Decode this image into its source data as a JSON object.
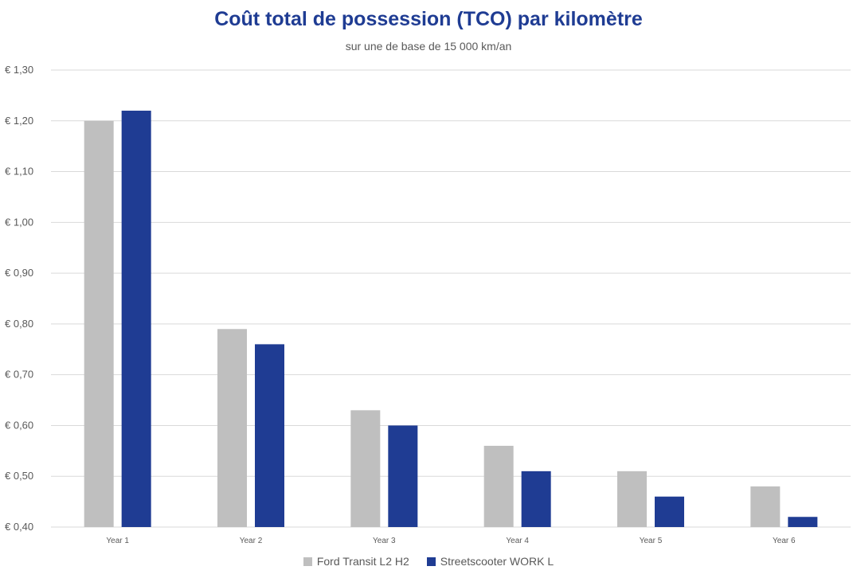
{
  "chart_data": {
    "type": "bar",
    "title": "Coût total de possession (TCO) par kilomètre",
    "subtitle": "sur une de base de 15 000 km/an",
    "categories": [
      "Year 1",
      "Year 2",
      "Year 3",
      "Year 4",
      "Year 5",
      "Year 6"
    ],
    "series": [
      {
        "name": "Ford Transit L2 H2",
        "color": "#bfbfbf",
        "values": [
          1.2,
          0.79,
          0.63,
          0.56,
          0.51,
          0.48
        ]
      },
      {
        "name": "Streetscooter WORK L",
        "color": "#1f3c93",
        "values": [
          1.22,
          0.76,
          0.6,
          0.51,
          0.46,
          0.42
        ]
      }
    ],
    "ylim": [
      0.4,
      1.3
    ],
    "y_ticks": [
      "€ 0,40",
      "€ 0,50",
      "€ 0,60",
      "€ 0,70",
      "€ 0,80",
      "€ 0,90",
      "€ 1,00",
      "€ 1,10",
      "€ 1,20",
      "€ 1,30"
    ],
    "y_tick_values": [
      0.4,
      0.5,
      0.6,
      0.7,
      0.8,
      0.9,
      1.0,
      1.1,
      1.2,
      1.3
    ],
    "grid": true,
    "legend_position": "bottom-center",
    "xlabel": "",
    "ylabel": ""
  }
}
